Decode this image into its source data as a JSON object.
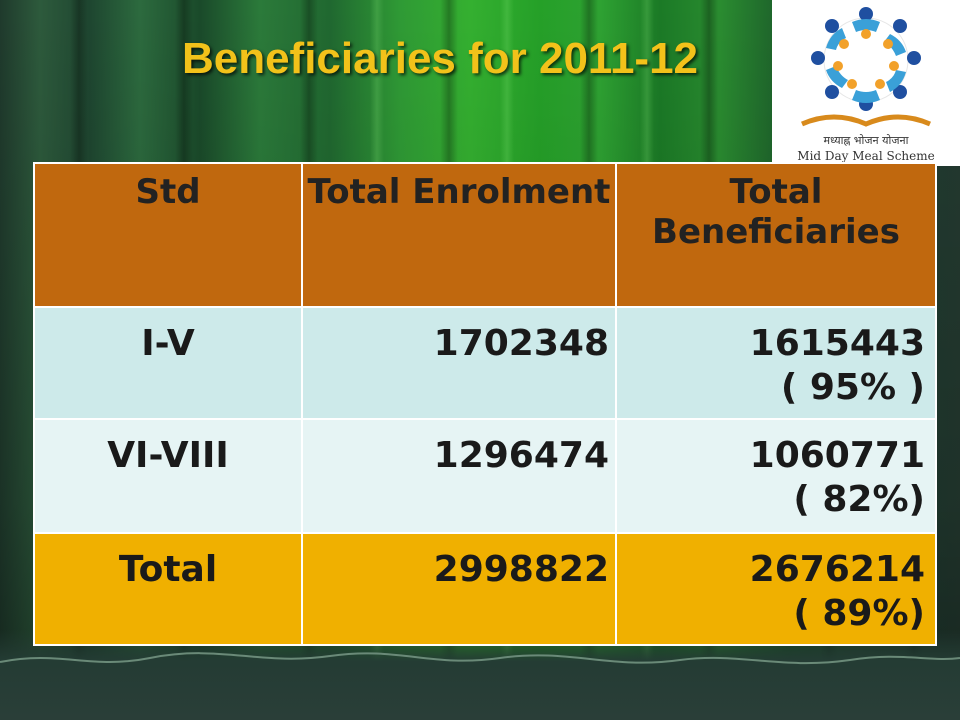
{
  "slide": {
    "title": "Beneficiaries for 2011-12",
    "title_color": "#f2c21a"
  },
  "logo": {
    "caption_hindi": "मध्याह्न भोजन योजना",
    "caption_english": "Mid Day Meal Scheme"
  },
  "table": {
    "headers": [
      "Std",
      "Total Enrolment",
      "Total Beneficiaries"
    ],
    "header_color": "#c0680e",
    "rows": [
      {
        "std": "I-V",
        "enrolment": "1702348",
        "beneficiaries": "1615443",
        "percent": "( 95% )"
      },
      {
        "std": "VI-VIII",
        "enrolment": "1296474",
        "beneficiaries": "1060771",
        "percent": "( 82%)"
      },
      {
        "std": "Total",
        "enrolment": "2998822",
        "beneficiaries": "2676214",
        "percent": "( 89%)"
      }
    ],
    "row_colors": [
      "#cdeaea",
      "#e6f4f4",
      "#f0b000"
    ]
  }
}
